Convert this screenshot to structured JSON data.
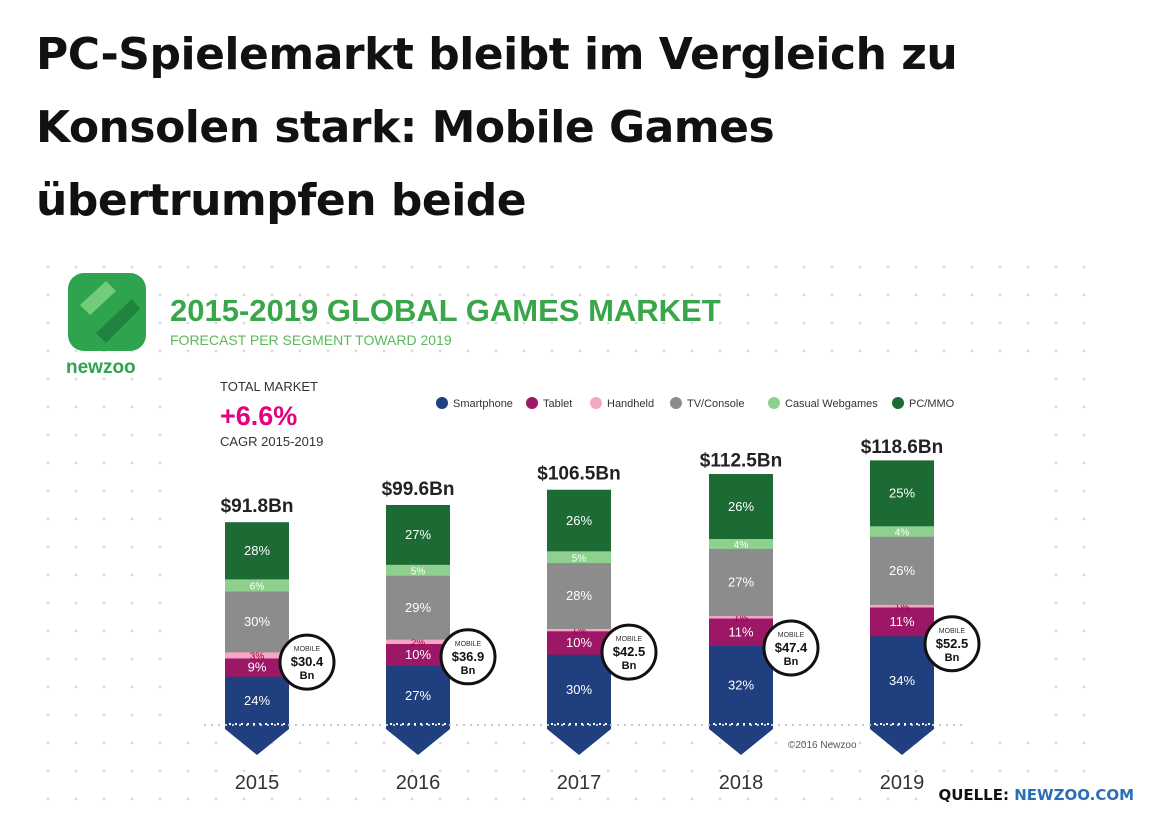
{
  "headline": "PC-Spielemarkt bleibt im Vergleich zu Konsolen stark: Mobile Games übertrumpfen beide",
  "source": {
    "label": "QUELLE:",
    "link": "NEWZOO.COM"
  },
  "colors": {
    "accent_green": "#2fa44f",
    "title_green": "#3aa64a",
    "subtitle_green": "#5cb85c",
    "magenta": "#e5007d",
    "total_text": "#222222"
  },
  "chart_data": {
    "type": "bar",
    "title": "2015-2019 GLOBAL GAMES MARKET",
    "subtitle": "FORECAST PER SEGMENT TOWARD 2019",
    "brand": "newzoo",
    "total_market": {
      "label": "TOTAL MARKET",
      "cagr": "+6.6%",
      "cagr_label": "CAGR 2015-2019"
    },
    "credit": "©2016 Newzoo",
    "unit": "Bn USD",
    "categories": [
      "2015",
      "2016",
      "2017",
      "2018",
      "2019"
    ],
    "totals": [
      91.8,
      99.6,
      106.5,
      112.5,
      118.6
    ],
    "total_labels": [
      "$91.8Bn",
      "$99.6Bn",
      "$106.5Bn",
      "$112.5Bn",
      "$118.6Bn"
    ],
    "mobile": {
      "label": "MOBILE",
      "values": [
        30.4,
        36.9,
        42.5,
        47.4,
        52.5
      ],
      "value_labels": [
        "$30.4",
        "$36.9",
        "$42.5",
        "$47.4",
        "$52.5"
      ],
      "unit": "Bn"
    },
    "series": [
      {
        "name": "Smartphone",
        "color": "#203f7e",
        "values": [
          24,
          27,
          30,
          32,
          34
        ],
        "labels": [
          "24%",
          "27%",
          "30%",
          "32%",
          "34%"
        ]
      },
      {
        "name": "Tablet",
        "color": "#9c1765",
        "values": [
          9,
          10,
          10,
          11,
          11
        ],
        "labels": [
          "9%",
          "10%",
          "10%",
          "11%",
          "11%"
        ]
      },
      {
        "name": "Handheld",
        "color": "#f4a7c5",
        "values": [
          3,
          2,
          1,
          1,
          1
        ],
        "labels": [
          "3%",
          "2%",
          "1%",
          "1%",
          "1%"
        ]
      },
      {
        "name": "TV/Console",
        "color": "#8c8c8c",
        "values": [
          30,
          29,
          28,
          27,
          26
        ],
        "labels": [
          "30%",
          "29%",
          "28%",
          "27%",
          "26%"
        ]
      },
      {
        "name": "Casual Webgames",
        "color": "#8fd08f",
        "values": [
          6,
          5,
          5,
          4,
          4
        ],
        "labels": [
          "6%",
          "5%",
          "5%",
          "4%",
          "4%"
        ]
      },
      {
        "name": "PC/MMO",
        "color": "#1c6b35",
        "values": [
          28,
          27,
          26,
          26,
          25
        ],
        "labels": [
          "28%",
          "27%",
          "26%",
          "26%",
          "25%"
        ]
      }
    ]
  }
}
